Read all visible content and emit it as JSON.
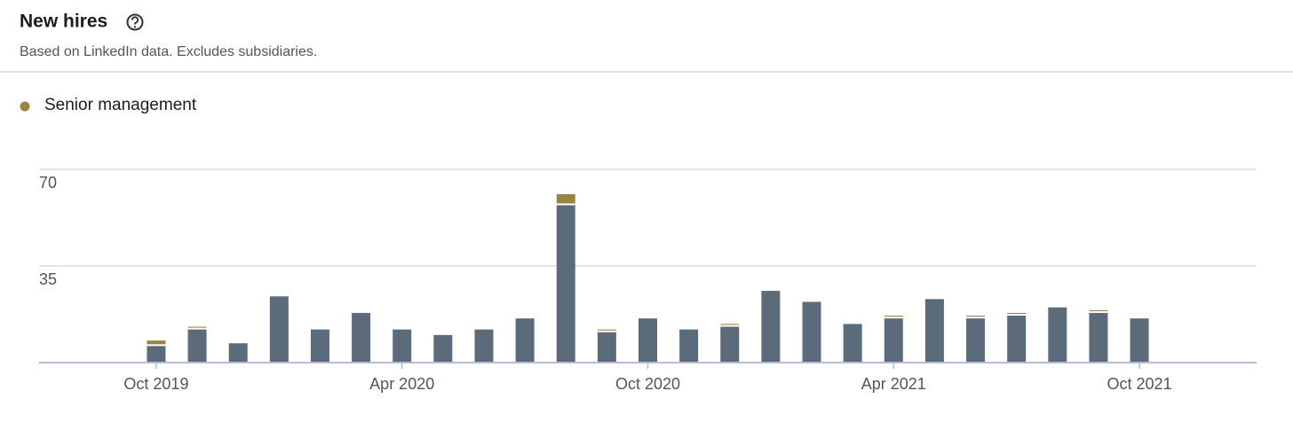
{
  "chart_data": {
    "type": "stacked-bar",
    "title": "New hires",
    "subtitle": "Based on LinkedIn data. Excludes subsidiaries.",
    "categories": [
      "Oct 2019",
      null,
      null,
      null,
      null,
      null,
      "Apr 2020",
      null,
      null,
      null,
      null,
      null,
      "Oct 2020",
      null,
      null,
      null,
      null,
      null,
      "Apr 2021",
      null,
      null,
      null,
      null,
      null,
      "Oct 2021"
    ],
    "series": [
      {
        "color": "#5b6b7a",
        "values": [
          6,
          12,
          7,
          24,
          12,
          18,
          12,
          10,
          12,
          16,
          57,
          11,
          16,
          12,
          13,
          26,
          22,
          14,
          16,
          23,
          16,
          17,
          20,
          18,
          16
        ]
      },
      {
        "name": "Senior management",
        "color": "#9a8444",
        "values": [
          2,
          1,
          0,
          0,
          0,
          0,
          0,
          0,
          0,
          0,
          4,
          1,
          0,
          0,
          1,
          0,
          0,
          0,
          1,
          0,
          1,
          1,
          0,
          1,
          0
        ]
      }
    ],
    "ylim": [
      0,
      70
    ],
    "yticks": [
      35,
      70
    ],
    "grid": true
  }
}
